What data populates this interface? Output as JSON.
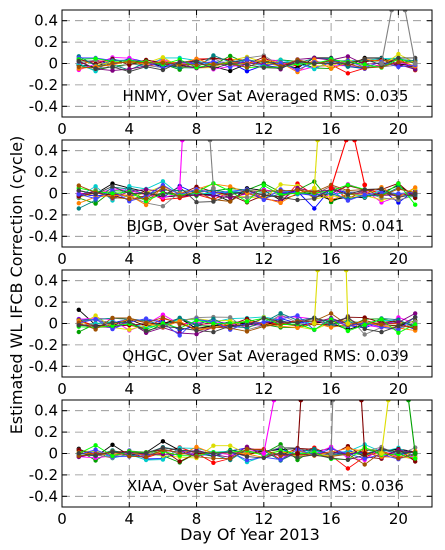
{
  "chart_data": {
    "type": "line",
    "xlabel": "Day Of Year 2013",
    "ylabel": "Estimated WL IFCB Correction (cycle)",
    "xlim": [
      0,
      22
    ],
    "ylim": [
      -0.5,
      0.5
    ],
    "xticks": [
      0,
      4,
      8,
      12,
      16,
      20
    ],
    "yticks": [
      0.4,
      0.2,
      0,
      -0.2,
      -0.4
    ],
    "xticklabels": [
      "0",
      "4",
      "8",
      "12",
      "16",
      "20"
    ],
    "yticklabels": [
      "0.4",
      "0.2",
      "0",
      "-0.2",
      "-0.4"
    ],
    "grid": true,
    "days": [
      1,
      2,
      3,
      4,
      5,
      6,
      7,
      8,
      9,
      10,
      11,
      12,
      13,
      14,
      15,
      16,
      17,
      18,
      19,
      20,
      21
    ],
    "series_colors": [
      "#0000ff",
      "#ff0000",
      "#00a000",
      "#000000",
      "#ff00ff",
      "#00cccc",
      "#dddd00",
      "#808080",
      "#800000",
      "#008080",
      "#800080",
      "#ff8000",
      "#4040ff",
      "#00ff00",
      "#a05000",
      "#404040"
    ],
    "panels": [
      {
        "station": "HNMY",
        "label": "HNMY, Over Sat Averaged RMS: 0.035",
        "rms": 0.035,
        "spread": 0.035,
        "outliers": [
          {
            "color": "#808080",
            "points": [
              [
                19,
                0.0
              ],
              [
                19.6,
                0.5
              ]
            ]
          },
          {
            "color": "#808080",
            "points": [
              [
                20.4,
                0.5
              ],
              [
                21,
                0.0
              ]
            ]
          }
        ]
      },
      {
        "station": "BJGB",
        "label": "BJGB, Over Sat Averaged RMS: 0.041",
        "rms": 0.041,
        "spread": 0.041,
        "outliers": [
          {
            "color": "#ff00ff",
            "points": [
              [
                7,
                0.05
              ],
              [
                7.15,
                0.5
              ]
            ]
          },
          {
            "color": "#808080",
            "points": [
              [
                8.8,
                0.5
              ],
              [
                9,
                0.05
              ]
            ]
          },
          {
            "color": "#dddd00",
            "points": [
              [
                15,
                0.05
              ],
              [
                15.2,
                0.5
              ]
            ]
          },
          {
            "color": "#ff0000",
            "points": [
              [
                16,
                0.05
              ],
              [
                16.9,
                0.5
              ]
            ]
          },
          {
            "color": "#ff0000",
            "points": [
              [
                17.4,
                0.5
              ],
              [
                18,
                0.08
              ]
            ]
          }
        ]
      },
      {
        "station": "QHGC",
        "label": "QHGC, Over Sat Averaged RMS: 0.039",
        "rms": 0.039,
        "spread": 0.039,
        "outliers": [
          {
            "color": "#dddd00",
            "points": [
              [
                15,
                0.0
              ],
              [
                15.2,
                0.5
              ]
            ]
          },
          {
            "color": "#dddd00",
            "points": [
              [
                16.9,
                0.5
              ],
              [
                17,
                0.0
              ]
            ]
          }
        ]
      },
      {
        "station": "XIAA",
        "label": "XIAA, Over Sat Averaged RMS: 0.036",
        "rms": 0.036,
        "spread": 0.036,
        "outliers": [
          {
            "color": "#ff00ff",
            "points": [
              [
                12,
                0.0
              ],
              [
                12.6,
                0.5
              ]
            ]
          },
          {
            "color": "#800000",
            "points": [
              [
                14,
                0.0
              ],
              [
                14.2,
                0.5
              ]
            ]
          },
          {
            "color": "#808080",
            "points": [
              [
                16,
                0.0
              ],
              [
                16.1,
                0.5
              ]
            ]
          },
          {
            "color": "#800000",
            "points": [
              [
                17.8,
                0.5
              ],
              [
                18,
                0.0
              ]
            ]
          },
          {
            "color": "#dddd00",
            "points": [
              [
                19,
                0.0
              ],
              [
                19.4,
                0.5
              ]
            ]
          },
          {
            "color": "#00a000",
            "points": [
              [
                20.6,
                0.5
              ],
              [
                21,
                0.0
              ]
            ]
          }
        ]
      }
    ]
  }
}
